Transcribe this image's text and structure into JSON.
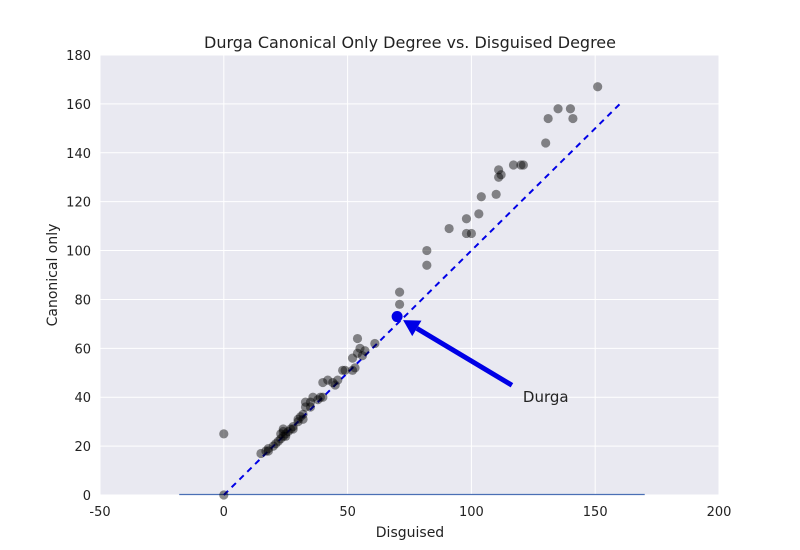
{
  "chart_data": {
    "type": "scatter",
    "title": "Durga Canonical Only Degree vs. Disguised Degree",
    "xlabel": "Disguised",
    "ylabel": "Canonical only",
    "xlim": [
      -50,
      200
    ],
    "ylim": [
      0,
      180
    ],
    "xticks": [
      -50,
      0,
      50,
      100,
      150,
      200
    ],
    "yticks": [
      0,
      20,
      40,
      60,
      80,
      100,
      120,
      140,
      160,
      180
    ],
    "grid": true,
    "background": "#e9e9f1",
    "gridColor": "#ffffff",
    "pointColor": "#000000",
    "highlightColor": "#0000e6",
    "points": [
      [
        0,
        25
      ],
      [
        0,
        0
      ],
      [
        15,
        17
      ],
      [
        17,
        18
      ],
      [
        18,
        19
      ],
      [
        18,
        18
      ],
      [
        20,
        20
      ],
      [
        21,
        21
      ],
      [
        22,
        22
      ],
      [
        23,
        23
      ],
      [
        23,
        25
      ],
      [
        24,
        24
      ],
      [
        24,
        26
      ],
      [
        24,
        27
      ],
      [
        25,
        24
      ],
      [
        25,
        25
      ],
      [
        26,
        26
      ],
      [
        27,
        27
      ],
      [
        28,
        28
      ],
      [
        28,
        27
      ],
      [
        30,
        30
      ],
      [
        30,
        31
      ],
      [
        31,
        32
      ],
      [
        32,
        31
      ],
      [
        32,
        33
      ],
      [
        33,
        36
      ],
      [
        33,
        38
      ],
      [
        35,
        36
      ],
      [
        35,
        38
      ],
      [
        36,
        40
      ],
      [
        38,
        39
      ],
      [
        39,
        40
      ],
      [
        40,
        40
      ],
      [
        40,
        46
      ],
      [
        42,
        47
      ],
      [
        44,
        46
      ],
      [
        45,
        45
      ],
      [
        46,
        47
      ],
      [
        48,
        51
      ],
      [
        49,
        51
      ],
      [
        52,
        51
      ],
      [
        52,
        56
      ],
      [
        53,
        52
      ],
      [
        54,
        58
      ],
      [
        54,
        64
      ],
      [
        55,
        60
      ],
      [
        56,
        57
      ],
      [
        57,
        59
      ],
      [
        61,
        62
      ],
      [
        71,
        78
      ],
      [
        71,
        83
      ],
      [
        82,
        100
      ],
      [
        82,
        94
      ],
      [
        91,
        109
      ],
      [
        98,
        113
      ],
      [
        98,
        107
      ],
      [
        100,
        107
      ],
      [
        103,
        115
      ],
      [
        104,
        122
      ],
      [
        110,
        123
      ],
      [
        111,
        133
      ],
      [
        111,
        130
      ],
      [
        112,
        131
      ],
      [
        117,
        135
      ],
      [
        120,
        135
      ],
      [
        121,
        135
      ],
      [
        130,
        144
      ],
      [
        131,
        154
      ],
      [
        135,
        158
      ],
      [
        140,
        158
      ],
      [
        141,
        154
      ],
      [
        151,
        167
      ]
    ],
    "highlight": {
      "label": "Durga",
      "x": 70,
      "y": 73,
      "label_x": 120,
      "label_y": 40
    },
    "identity_line": {
      "x0": 0,
      "x1": 160,
      "color": "#0000e6",
      "style": "dashed"
    },
    "baseline": {
      "x0": -18,
      "x1": 170,
      "y": 0,
      "color": "#4a6fb5"
    }
  }
}
